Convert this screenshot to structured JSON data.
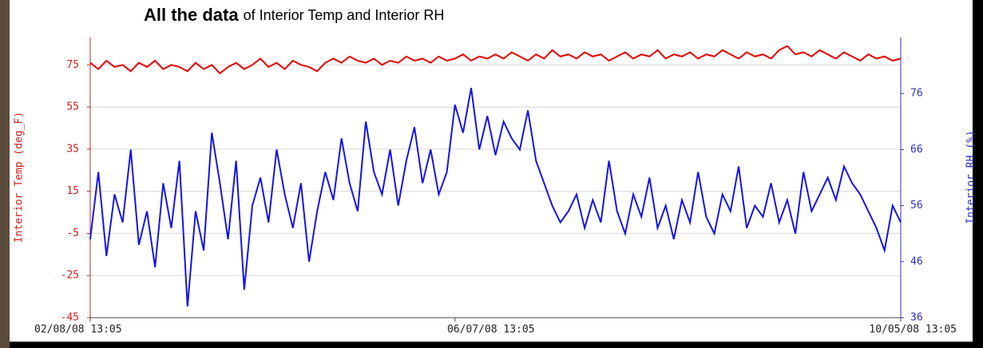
{
  "chart_data": {
    "type": "line",
    "title": "All the data",
    "subtitle": "of Interior Temp and Interior RH",
    "y_label": "Interior Temp (deg_F)",
    "y2_label": "Interior RH (%)",
    "categories": [
      "02/08/08 13:05",
      null,
      null,
      null,
      null,
      null,
      null,
      null,
      null,
      null,
      null,
      null,
      null,
      null,
      null,
      null,
      null,
      null,
      null,
      null,
      null,
      null,
      null,
      null,
      null,
      null,
      null,
      null,
      null,
      null,
      null,
      null,
      null,
      null,
      null,
      null,
      null,
      null,
      null,
      null,
      null,
      null,
      null,
      null,
      null,
      "06/07/08 13:05",
      null,
      null,
      null,
      null,
      null,
      null,
      null,
      null,
      null,
      null,
      null,
      null,
      null,
      null,
      null,
      null,
      null,
      null,
      null,
      null,
      null,
      null,
      null,
      null,
      null,
      null,
      null,
      null,
      null,
      null,
      null,
      null,
      null,
      null,
      null,
      null,
      null,
      null,
      null,
      null,
      null,
      null,
      null,
      null,
      null,
      null,
      null,
      null,
      null,
      null,
      null,
      null,
      null,
      null,
      "10/05/08 13:05"
    ],
    "ylim": [
      -45,
      88
    ],
    "yticks": [
      -45,
      -25,
      -5,
      15,
      35,
      55,
      75
    ],
    "y2lim": [
      36,
      86
    ],
    "y2ticks": [
      36,
      46,
      56,
      66,
      76
    ],
    "grid": true,
    "series": [
      {
        "name": "Interior Temp",
        "color": "#e80000",
        "values": [
          76,
          73,
          77,
          74,
          75,
          72,
          76,
          74,
          77,
          73,
          75,
          74,
          72,
          76,
          73,
          75,
          71,
          74,
          76,
          73,
          75,
          78,
          74,
          76,
          73,
          77,
          75,
          74,
          72,
          76,
          78,
          76,
          79,
          77,
          76,
          78,
          75,
          77,
          76,
          79,
          77,
          78,
          76,
          79,
          77,
          78,
          80,
          77,
          79,
          78,
          80,
          78,
          81,
          79,
          77,
          80,
          78,
          82,
          79,
          80,
          78,
          81,
          79,
          80,
          77,
          79,
          81,
          78,
          80,
          79,
          82,
          78,
          80,
          79,
          81,
          78,
          80,
          79,
          82,
          80,
          78,
          81,
          79,
          80,
          78,
          82,
          84,
          80,
          81,
          79,
          82,
          80,
          78,
          81,
          79,
          77,
          80,
          78,
          79,
          77,
          78
        ]
      },
      {
        "name": "Interior RH",
        "color": "#1414e6",
        "axis": "y2",
        "values": [
          50,
          62,
          47,
          58,
          53,
          66,
          49,
          55,
          45,
          60,
          52,
          64,
          38,
          55,
          48,
          69,
          60,
          50,
          64,
          41,
          56,
          61,
          53,
          66,
          58,
          52,
          60,
          46,
          55,
          62,
          57,
          68,
          60,
          55,
          71,
          62,
          58,
          66,
          56,
          64,
          70,
          60,
          66,
          58,
          62,
          74,
          69,
          77,
          66,
          72,
          65,
          71,
          68,
          66,
          73,
          64,
          60,
          56,
          53,
          55,
          58,
          52,
          57,
          53,
          64,
          55,
          51,
          58,
          54,
          61,
          52,
          56,
          50,
          57,
          53,
          62,
          54,
          51,
          58,
          55,
          63,
          52,
          56,
          54,
          60,
          53,
          57,
          51,
          62,
          55,
          58,
          61,
          57,
          63,
          60,
          58,
          55,
          52,
          48,
          56,
          53
        ]
      }
    ]
  }
}
